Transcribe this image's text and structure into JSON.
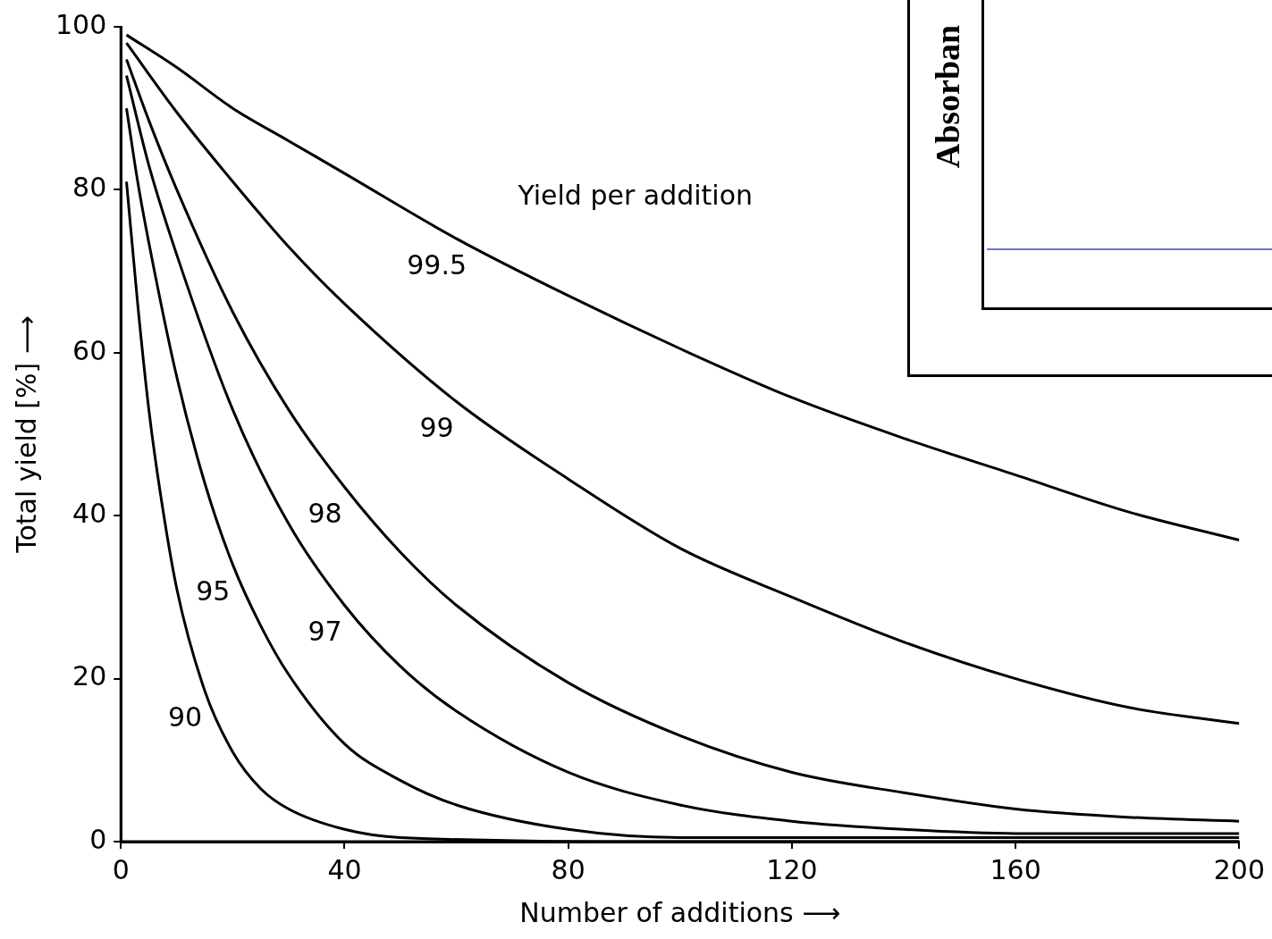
{
  "chart_data": [
    {
      "type": "line",
      "xlabel": "Number of additions ⟶",
      "ylabel": "Total yield [%] ⟶",
      "xlim": [
        0,
        200
      ],
      "ylim": [
        0,
        100
      ],
      "xticks": [
        0,
        40,
        80,
        120,
        160,
        200
      ],
      "yticks": [
        0,
        20,
        40,
        60,
        80,
        100
      ],
      "grid": false,
      "legend": false,
      "marker": "none",
      "line_style": "solid",
      "series": [
        {
          "name": "99.5",
          "color": "#000000",
          "x": [
            1,
            10,
            20,
            30,
            40,
            60,
            80,
            100,
            120,
            140,
            160,
            180,
            200
          ],
          "values": [
            99,
            95,
            90,
            86,
            82,
            74,
            67,
            60.5,
            54.5,
            49.5,
            45,
            40.5,
            37
          ]
        },
        {
          "name": "99",
          "color": "#000000",
          "x": [
            1,
            10,
            20,
            30,
            40,
            60,
            80,
            100,
            120,
            140,
            160,
            180,
            200
          ],
          "values": [
            98,
            89.5,
            81,
            73,
            66,
            54,
            44.5,
            36,
            30,
            24.5,
            20,
            16.5,
            14.5
          ]
        },
        {
          "name": "98",
          "color": "#000000",
          "x": [
            1,
            5,
            10,
            20,
            30,
            40,
            50,
            60,
            80,
            100,
            120,
            140,
            160,
            180,
            200
          ],
          "values": [
            96,
            88.5,
            80,
            65,
            53,
            43.5,
            35.5,
            29,
            19.5,
            13,
            8.5,
            6,
            4,
            3,
            2.5
          ]
        },
        {
          "name": "97",
          "color": "#000000",
          "x": [
            1,
            5,
            10,
            20,
            30,
            40,
            50,
            60,
            80,
            100,
            120,
            140,
            160,
            200
          ],
          "values": [
            94,
            83,
            72,
            53,
            39,
            29,
            21.5,
            16,
            8.5,
            4.5,
            2.5,
            1.5,
            1,
            1
          ]
        },
        {
          "name": "95",
          "color": "#000000",
          "x": [
            1,
            3,
            5,
            10,
            15,
            20,
            25,
            30,
            40,
            50,
            60,
            80,
            100,
            200
          ],
          "values": [
            90,
            81,
            73.5,
            57,
            44,
            34,
            26.5,
            20.5,
            12,
            7.5,
            4.5,
            1.5,
            0.5,
            0.5
          ]
        },
        {
          "name": "90",
          "color": "#000000",
          "x": [
            1,
            3,
            5,
            7,
            10,
            15,
            20,
            25,
            30,
            40,
            50,
            100,
            200
          ],
          "values": [
            81,
            66,
            53,
            43,
            31,
            18.5,
            11,
            6.5,
            4,
            1.5,
            0.5,
            0,
            0
          ]
        }
      ],
      "annotations": [
        "Yield per addition"
      ]
    },
    {
      "type": "other",
      "ylabel": "Absorban"
    }
  ]
}
